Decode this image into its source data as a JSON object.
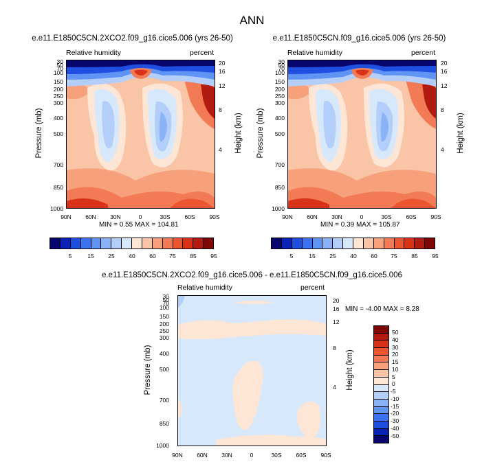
{
  "suptitle": "ANN",
  "panels": [
    {
      "title": "e.e11.E1850C5CN.2XCO2.f09_g16.cice5.006 (yrs 26-50)",
      "left_label": "Relative humidity",
      "right_label": "percent",
      "ylabel": "Pressure (mb)",
      "y2label": "Height (km)",
      "minmax": "MIN =  0.55  MAX = 104.81"
    },
    {
      "title": "e.e11.E1850C5CN.f09_g16.cice5.006 (yrs 26-50)",
      "left_label": "Relative humidity",
      "right_label": "percent",
      "ylabel": "Pressure (mb)",
      "y2label": "Height (km)",
      "minmax": "MIN =  0.39  MAX = 105.87"
    },
    {
      "title": "e.e11.E1850C5CN.2XCO2.f09_g16.cice5.006 - e.e11.E1850C5CN.f09_g16.cice5.006",
      "left_label": "Relative humidity",
      "right_label": "percent",
      "ylabel": "Pressure (mb)",
      "y2label": "Height (km)",
      "minmax": "MIN = -4.00  MAX =  8.28"
    }
  ],
  "axes": {
    "pressure_ticks": [
      "30",
      "50",
      "70",
      "100",
      "150",
      "200",
      "250",
      "300",
      "400",
      "500",
      "700",
      "850",
      "1000"
    ],
    "height_ticks": [
      "20",
      "16",
      "12",
      "8",
      "4"
    ],
    "lat_ticks": [
      "90N",
      "60N",
      "30N",
      "0",
      "30S",
      "60S",
      "90S"
    ]
  },
  "colorbars": {
    "abs_labels": [
      "5",
      "15",
      "25",
      "40",
      "60",
      "75",
      "85",
      "95"
    ],
    "abs_colors": [
      "#07066e",
      "#0a23b4",
      "#1f4fe0",
      "#3c73f0",
      "#5f93f4",
      "#8ab2f6",
      "#b3cff9",
      "#d7e8fb",
      "#fde6d5",
      "#f9c5a6",
      "#f6a17c",
      "#f27b55",
      "#ec5531",
      "#d83219",
      "#b21b0f",
      "#7e0705"
    ],
    "diff_labels": [
      "50",
      "40",
      "30",
      "20",
      "15",
      "10",
      "5",
      "0",
      "-5",
      "-10",
      "-15",
      "-20",
      "-30",
      "-40",
      "-50"
    ],
    "diff_colors": [
      "#7e0705",
      "#b21b0f",
      "#d83219",
      "#ec5531",
      "#f27b55",
      "#f6a17c",
      "#f9c5a6",
      "#fde6d5",
      "#d7e8fb",
      "#b3cff9",
      "#8ab2f6",
      "#5f93f4",
      "#3c73f0",
      "#1f4fe0",
      "#0a23b4",
      "#07066e"
    ]
  },
  "chart_data": [
    {
      "type": "heatmap",
      "title": "e.e11.E1850C5CN.2XCO2.f09_g16.cice5.006 (yrs 26-50)",
      "variable": "Relative humidity",
      "units": "percent",
      "xlabel": "",
      "ylabel": "Pressure (mb)",
      "y2label": "Height (km)",
      "x_ticks": [
        "90N",
        "60N",
        "30N",
        "0",
        "30S",
        "60S",
        "90S"
      ],
      "y_ticks_mb": [
        30,
        50,
        70,
        100,
        150,
        200,
        250,
        300,
        400,
        500,
        700,
        850,
        1000
      ],
      "y2_ticks_km": [
        20,
        16,
        12,
        8,
        4
      ],
      "levels": [
        5,
        10,
        15,
        20,
        25,
        30,
        40,
        50,
        60,
        70,
        75,
        80,
        85,
        90,
        95
      ],
      "min": 0.55,
      "max": 104.81
    },
    {
      "type": "heatmap",
      "title": "e.e11.E1850C5CN.f09_g16.cice5.006 (yrs 26-50)",
      "variable": "Relative humidity",
      "units": "percent",
      "xlabel": "",
      "ylabel": "Pressure (mb)",
      "y2label": "Height (km)",
      "x_ticks": [
        "90N",
        "60N",
        "30N",
        "0",
        "30S",
        "60S",
        "90S"
      ],
      "y_ticks_mb": [
        30,
        50,
        70,
        100,
        150,
        200,
        250,
        300,
        400,
        500,
        700,
        850,
        1000
      ],
      "y2_ticks_km": [
        20,
        16,
        12,
        8,
        4
      ],
      "levels": [
        5,
        10,
        15,
        20,
        25,
        30,
        40,
        50,
        60,
        70,
        75,
        80,
        85,
        90,
        95
      ],
      "min": 0.39,
      "max": 105.87
    },
    {
      "type": "heatmap",
      "title": "e.e11.E1850C5CN.2XCO2.f09_g16.cice5.006 - e.e11.E1850C5CN.f09_g16.cice5.006",
      "variable": "Relative humidity",
      "units": "percent",
      "xlabel": "",
      "ylabel": "Pressure (mb)",
      "y2label": "Height (km)",
      "x_ticks": [
        "90N",
        "60N",
        "30N",
        "0",
        "30S",
        "60S",
        "90S"
      ],
      "y_ticks_mb": [
        30,
        50,
        70,
        100,
        150,
        200,
        250,
        300,
        400,
        500,
        700,
        850,
        1000
      ],
      "y2_ticks_km": [
        20,
        16,
        12,
        8,
        4
      ],
      "levels": [
        -50,
        -40,
        -30,
        -20,
        -15,
        -10,
        -5,
        0,
        5,
        10,
        15,
        20,
        30,
        40,
        50
      ],
      "min": -4.0,
      "max": 8.28
    }
  ]
}
